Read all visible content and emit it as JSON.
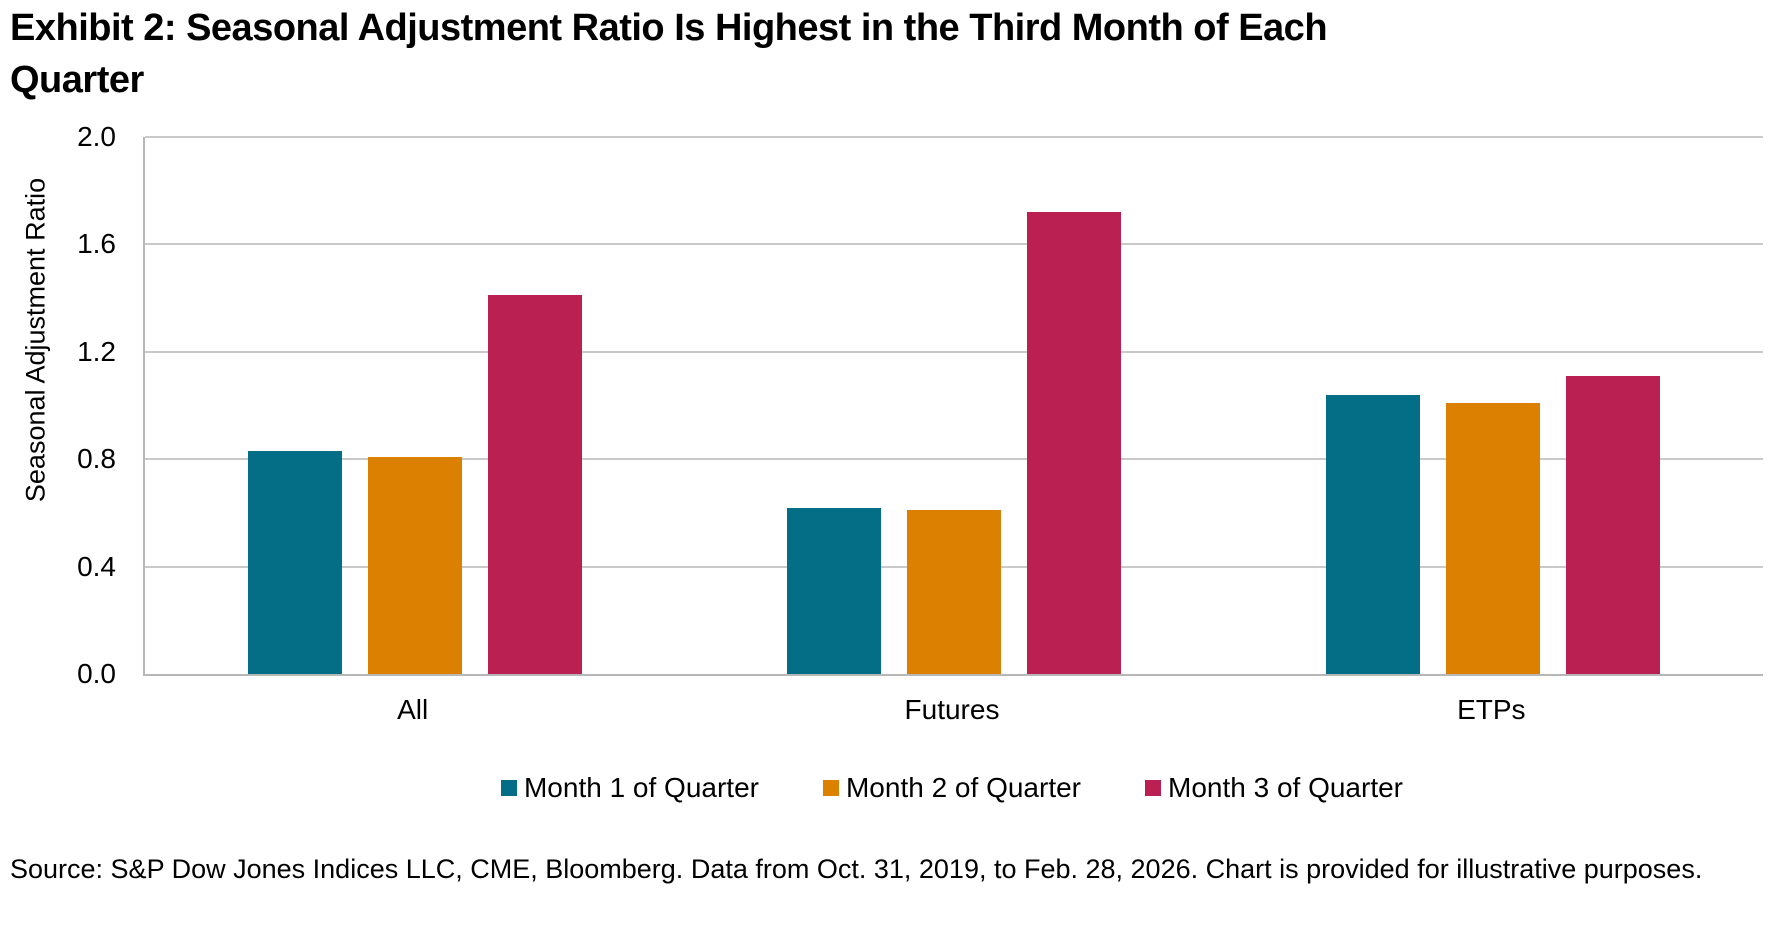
{
  "title": {
    "line1": "Exhibit 2: Seasonal Adjustment Ratio Is Highest in the Third Month of Each",
    "line2": "Quarter"
  },
  "source": "Source: S&P Dow Jones Indices LLC, CME, Bloomberg. Data from Oct. 31, 2019, to Feb. 28, 2026. Chart is provided for illustrative purposes.",
  "chart_data": {
    "type": "bar",
    "title": "Exhibit 2: Seasonal Adjustment Ratio Is Highest in the Third Month of Each Quarter",
    "xlabel": "",
    "ylabel": "Seasonal Adjustment Ratio",
    "categories": [
      "All",
      "Futures",
      "ETPs"
    ],
    "series": [
      {
        "name": "Month 1 of Quarter",
        "color": "#036e86",
        "values": [
          0.83,
          0.62,
          1.04
        ]
      },
      {
        "name": "Month 2 of Quarter",
        "color": "#db8000",
        "values": [
          0.81,
          0.61,
          1.01
        ]
      },
      {
        "name": "Month 3 of Quarter",
        "color": "#bb2053",
        "values": [
          1.41,
          1.72,
          1.11
        ]
      }
    ],
    "ylim": [
      0.0,
      2.0
    ],
    "yticks": [
      "0.0",
      "0.4",
      "0.8",
      "1.2",
      "1.6",
      "2.0"
    ],
    "grid": true,
    "gridline_color": "#c9c9c9",
    "axis_line_color": "#b7b7b7",
    "legend_position": "bottom"
  }
}
